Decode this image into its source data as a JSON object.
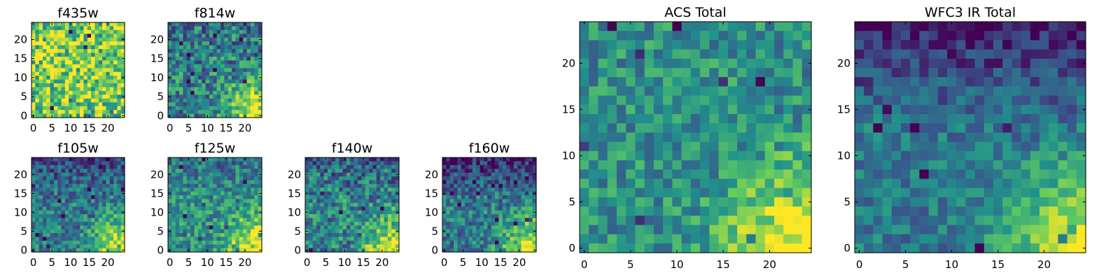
{
  "figure": {
    "description_free": true,
    "colormap": "viridis",
    "colormap_stops": [
      "#440154",
      "#3b528b",
      "#21918c",
      "#5ec962",
      "#fde725"
    ]
  },
  "chart_data": [
    {
      "type": "heatmap",
      "title": "f435w",
      "grid": [
        25,
        25
      ],
      "xlim": [
        0,
        24
      ],
      "ylim": [
        0,
        24
      ],
      "xticks": [
        "0",
        "5",
        "10",
        "15",
        "20"
      ],
      "yticks": [
        "0",
        "5",
        "10",
        "15",
        "20"
      ],
      "intensity": {
        "mean": 0.78,
        "spread": 0.34,
        "bright_corner": "none",
        "dark_top": 0.0
      },
      "seed": 11
    },
    {
      "type": "heatmap",
      "title": "f814w",
      "grid": [
        25,
        25
      ],
      "xlim": [
        0,
        24
      ],
      "ylim": [
        0,
        24
      ],
      "xticks": [
        "0",
        "5",
        "10",
        "15",
        "20"
      ],
      "yticks": [
        "0",
        "5",
        "10",
        "15",
        "20"
      ],
      "intensity": {
        "mean": 0.45,
        "spread": 0.28,
        "bright_corner": "bottom-right",
        "dark_top": 0.05
      },
      "seed": 23
    },
    {
      "type": "heatmap",
      "title": "f105w",
      "grid": [
        25,
        25
      ],
      "xlim": [
        0,
        24
      ],
      "ylim": [
        0,
        24
      ],
      "xticks": [
        "0",
        "5",
        "10",
        "15",
        "20"
      ],
      "yticks": [
        "0",
        "5",
        "10",
        "15",
        "20"
      ],
      "intensity": {
        "mean": 0.42,
        "spread": 0.22,
        "bright_corner": "bottom-right",
        "dark_top": 0.18
      },
      "seed": 37
    },
    {
      "type": "heatmap",
      "title": "f125w",
      "grid": [
        25,
        25
      ],
      "xlim": [
        0,
        24
      ],
      "ylim": [
        0,
        24
      ],
      "xticks": [
        "0",
        "5",
        "10",
        "15",
        "20"
      ],
      "yticks": [
        "0",
        "5",
        "10",
        "15",
        "20"
      ],
      "intensity": {
        "mean": 0.5,
        "spread": 0.22,
        "bright_corner": "bottom-right",
        "dark_top": 0.12
      },
      "seed": 41
    },
    {
      "type": "heatmap",
      "title": "f140w",
      "grid": [
        25,
        25
      ],
      "xlim": [
        0,
        24
      ],
      "ylim": [
        0,
        24
      ],
      "xticks": [
        "0",
        "5",
        "10",
        "15",
        "20"
      ],
      "yticks": [
        "0",
        "5",
        "10",
        "15",
        "20"
      ],
      "intensity": {
        "mean": 0.46,
        "spread": 0.26,
        "bright_corner": "bottom-right",
        "dark_top": 0.15
      },
      "seed": 53
    },
    {
      "type": "heatmap",
      "title": "f160w",
      "grid": [
        25,
        25
      ],
      "xlim": [
        0,
        24
      ],
      "ylim": [
        0,
        24
      ],
      "xticks": [
        "0",
        "5",
        "10",
        "15",
        "20"
      ],
      "yticks": [
        "0",
        "5",
        "10",
        "15",
        "20"
      ],
      "intensity": {
        "mean": 0.42,
        "spread": 0.22,
        "bright_corner": "bottom-right",
        "dark_top": 0.3
      },
      "seed": 67
    },
    {
      "type": "heatmap",
      "title": "ACS Total",
      "grid": [
        25,
        25
      ],
      "xlim": [
        0,
        24
      ],
      "ylim": [
        0,
        24
      ],
      "xticks": [
        "0",
        "5",
        "10",
        "15",
        "20"
      ],
      "yticks": [
        "0",
        "5",
        "10",
        "15",
        "20"
      ],
      "intensity": {
        "mean": 0.5,
        "spread": 0.2,
        "bright_corner": "bottom-right",
        "dark_top": 0.0
      },
      "seed": 79
    },
    {
      "type": "heatmap",
      "title": "WFC3 IR Total",
      "grid": [
        25,
        25
      ],
      "xlim": [
        0,
        24
      ],
      "ylim": [
        0,
        24
      ],
      "xticks": [
        "0",
        "5",
        "10",
        "15",
        "20"
      ],
      "yticks": [
        "0",
        "5",
        "10",
        "15",
        "20"
      ],
      "intensity": {
        "mean": 0.4,
        "spread": 0.16,
        "bright_corner": "bottom-right",
        "dark_top": 0.32
      },
      "seed": 97
    }
  ]
}
